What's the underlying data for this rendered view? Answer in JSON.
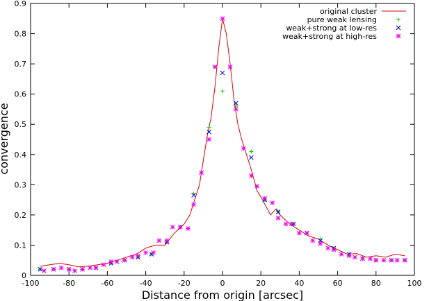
{
  "chart_data": {
    "type": "scatter",
    "title": "",
    "xlabel": "Distance from origin [arcsec]",
    "ylabel": "convergence",
    "xlim": [
      -100,
      100
    ],
    "ylim": [
      0,
      0.9
    ],
    "xticks": [
      -100,
      -80,
      -60,
      -40,
      -20,
      0,
      20,
      40,
      60,
      80,
      100
    ],
    "yticks": [
      0,
      0.1,
      0.2,
      0.3,
      0.4,
      0.5,
      0.6,
      0.7,
      0.8,
      0.9
    ],
    "grid": false,
    "legend_position": "top-right",
    "series": [
      {
        "name": "original cluster",
        "style": "line",
        "color": "#dd0000",
        "x": [
          -95,
          -90,
          -85,
          -80,
          -75,
          -70,
          -65,
          -60,
          -55,
          -50,
          -45,
          -40,
          -35,
          -30,
          -25,
          -20,
          -17,
          -15,
          -12,
          -10,
          -8,
          -6,
          -4,
          -2,
          0,
          2,
          4,
          6,
          8,
          10,
          12,
          15,
          18,
          20,
          25,
          28,
          30,
          35,
          40,
          45,
          50,
          55,
          60,
          65,
          70,
          75,
          80,
          85,
          90,
          95
        ],
        "y": [
          0.03,
          0.035,
          0.04,
          0.035,
          0.028,
          0.03,
          0.035,
          0.04,
          0.05,
          0.06,
          0.07,
          0.09,
          0.1,
          0.1,
          0.14,
          0.17,
          0.2,
          0.24,
          0.3,
          0.38,
          0.46,
          0.52,
          0.62,
          0.75,
          0.85,
          0.8,
          0.7,
          0.58,
          0.5,
          0.45,
          0.41,
          0.35,
          0.28,
          0.26,
          0.2,
          0.22,
          0.2,
          0.17,
          0.15,
          0.13,
          0.12,
          0.1,
          0.085,
          0.07,
          0.072,
          0.06,
          0.065,
          0.06,
          0.07,
          0.065
        ]
      },
      {
        "name": "pure weak lensing",
        "style": "plus",
        "color": "#00cc00",
        "x": [
          -95,
          -88,
          -80,
          -73,
          -66,
          -58,
          -51,
          -44,
          -37,
          -29,
          -22,
          -15,
          -7,
          0,
          7,
          15,
          22,
          29,
          37,
          44,
          51,
          58,
          66,
          73,
          80,
          88,
          95
        ],
        "y": [
          0.02,
          0.02,
          0.02,
          0.02,
          0.025,
          0.04,
          0.05,
          0.06,
          0.07,
          0.11,
          0.16,
          0.27,
          0.49,
          0.61,
          0.56,
          0.41,
          0.25,
          0.21,
          0.17,
          0.14,
          0.12,
          0.09,
          0.07,
          0.06,
          0.05,
          0.05,
          0.05
        ]
      },
      {
        "name": "weak+strong at low-res",
        "style": "cross",
        "color": "#0000cc",
        "x": [
          -95,
          -88,
          -80,
          -73,
          -66,
          -58,
          -51,
          -44,
          -37,
          -29,
          -22,
          -15,
          -7,
          0,
          7,
          15,
          22,
          29,
          37,
          44,
          51,
          58,
          66,
          73,
          80,
          88,
          95
        ],
        "y": [
          0.02,
          0.02,
          0.02,
          0.02,
          0.025,
          0.04,
          0.05,
          0.06,
          0.07,
          0.11,
          0.16,
          0.265,
          0.475,
          0.67,
          0.57,
          0.39,
          0.25,
          0.21,
          0.17,
          0.14,
          0.115,
          0.09,
          0.07,
          0.055,
          0.05,
          0.05,
          0.05
        ]
      },
      {
        "name": "weak+strong at high-res",
        "style": "star",
        "color": "#ee00ee",
        "x": [
          -93,
          -88,
          -84,
          -80,
          -77,
          -73,
          -69,
          -66,
          -62,
          -58,
          -55,
          -51,
          -47,
          -44,
          -40,
          -36,
          -33,
          -29,
          -26,
          -22,
          -18,
          -15,
          -11,
          -7,
          -4,
          0,
          4,
          7,
          11,
          15,
          18,
          22,
          26,
          29,
          33,
          36,
          40,
          44,
          47,
          51,
          55,
          58,
          62,
          66,
          69,
          73,
          77,
          80,
          84,
          88,
          91,
          95
        ],
        "y": [
          0.015,
          0.02,
          0.025,
          0.02,
          0.015,
          0.02,
          0.025,
          0.025,
          0.035,
          0.045,
          0.045,
          0.05,
          0.06,
          0.065,
          0.075,
          0.075,
          0.115,
          0.115,
          0.16,
          0.16,
          0.155,
          0.235,
          0.34,
          0.45,
          0.69,
          0.85,
          0.69,
          0.55,
          0.42,
          0.33,
          0.295,
          0.255,
          0.24,
          0.19,
          0.17,
          0.17,
          0.14,
          0.14,
          0.115,
          0.105,
          0.09,
          0.085,
          0.07,
          0.065,
          0.06,
          0.055,
          0.055,
          0.05,
          0.05,
          0.05,
          0.05,
          0.05
        ]
      }
    ]
  }
}
